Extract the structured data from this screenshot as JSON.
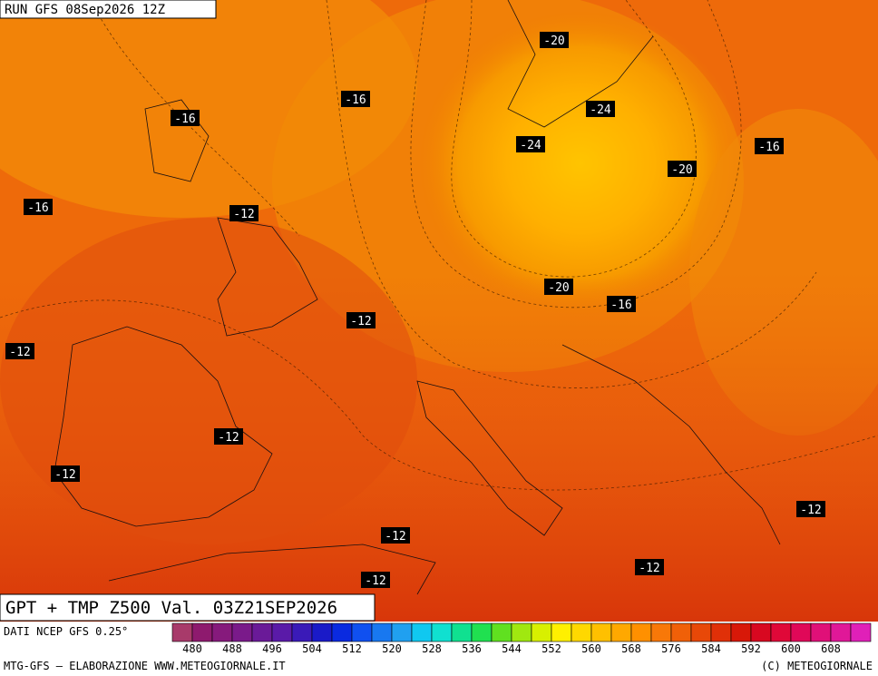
{
  "header": {
    "run": "RUN GFS 08Sep2026 12Z"
  },
  "contour_labels": [
    "-20",
    "-16",
    "-16",
    "-24",
    "-24",
    "-20",
    "-16",
    "-16",
    "-12",
    "-12",
    "-20",
    "-16",
    "-12",
    "-12",
    "-12",
    "-12",
    "-12",
    "-12",
    "-12"
  ],
  "footer": {
    "title": "GPT + TMP Z500 Val. 03Z21SEP2026",
    "source": "DATI NCEP GFS 0.25°",
    "credit": "MTG-GFS — ELABORAZIONE WWW.METEOGIORNALE.IT",
    "copyright": "(C) METEOGIORNALE"
  },
  "colorbar": {
    "labels": [
      480,
      488,
      496,
      504,
      512,
      520,
      528,
      536,
      544,
      552,
      560,
      568,
      576,
      584,
      592,
      600,
      608
    ]
  }
}
